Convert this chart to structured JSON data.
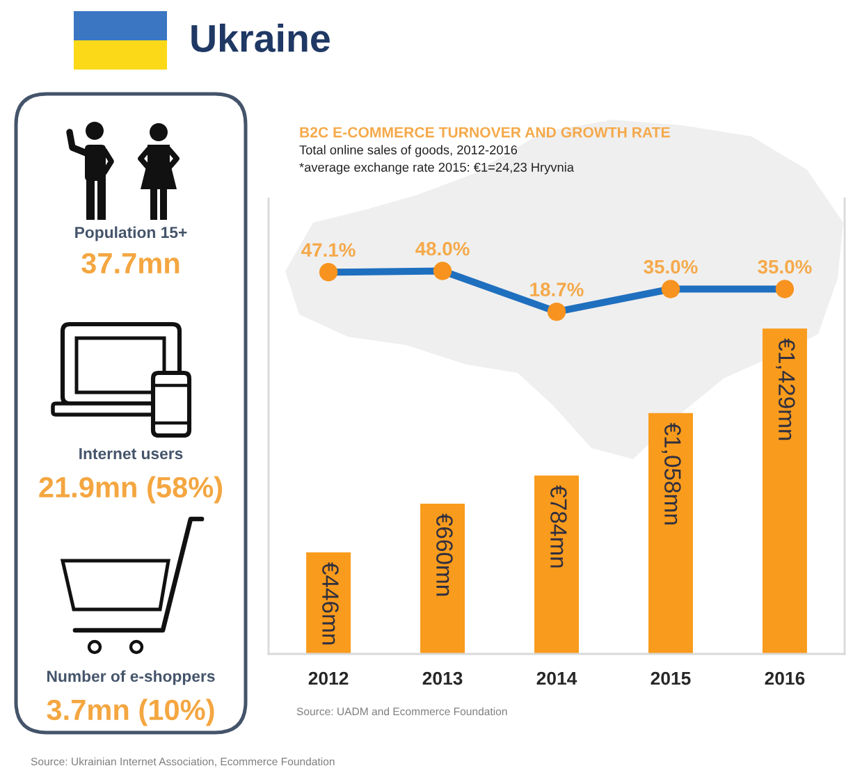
{
  "chart_data": [
    {
      "type": "other",
      "title": "Ukraine",
      "annotations": [
        "Population 15+",
        "37.7mn",
        "Internet users",
        "21.9mn (58%)",
        "Number of e-shoppers",
        "3.7mn (10%)",
        "Source: Ukrainian Internet Association, Ecommerce Foundation"
      ]
    },
    {
      "type": "bar",
      "title": "B2C E-COMMERCE TURNOVER AND GROWTH RATE",
      "subtitle": "Total online sales of goods, 2012-2016",
      "categories": [
        "2012",
        "2013",
        "2014",
        "2015",
        "2016"
      ],
      "series": [
        {
          "type": "bar",
          "color": "#f99b1c",
          "values": [
            446,
            660,
            784,
            1058,
            1429
          ],
          "value_labels": [
            "€446mn",
            "€660mn",
            "€784mn",
            "€1,058mn",
            "€1,429mn"
          ]
        },
        {
          "type": "line",
          "axis": "y2",
          "color": "#1f6fbf",
          "colors": [
            "#f7931e",
            "#f7931e",
            "#f7931e",
            "#f7931e",
            "#f7931e"
          ],
          "values": [
            47.1,
            48.0,
            18.7,
            35.0,
            35.0
          ],
          "value_labels": [
            "47.1%",
            "48.0%",
            "18.7%",
            "35.0%",
            "35.0%"
          ]
        }
      ],
      "ylim": [
        0,
        2000
      ],
      "y2lim": [
        -227,
        100
      ],
      "tick_labels": "x",
      "marker": "circle",
      "line_style": "solid",
      "annotations": [
        "*average exchange rate 2015: €1=24,23 Hryvnia",
        "Source: UADM and Ecommerce Foundation"
      ]
    }
  ]
}
